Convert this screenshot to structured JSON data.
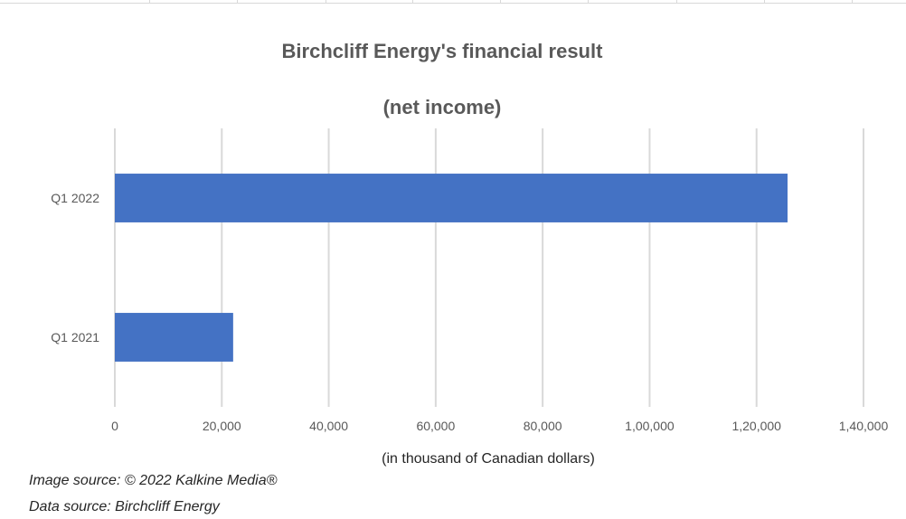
{
  "chart_data": {
    "type": "bar",
    "orientation": "horizontal",
    "title": "Birchcliff Energy's financial result",
    "subtitle": "(net income)",
    "categories": [
      "Q1 2021",
      "Q1 2022"
    ],
    "values": [
      22126,
      125795
    ],
    "xlabel": "(in thousand of Canadian dollars)",
    "ylabel": "",
    "xlim": [
      0,
      140000
    ],
    "x_ticks": [
      0,
      20000,
      40000,
      60000,
      80000,
      100000,
      120000,
      140000
    ],
    "x_tick_labels": [
      "0",
      "20,000",
      "40,000",
      "60,000",
      "80,000",
      "1,00,000",
      "1,20,000",
      "1,40,000"
    ],
    "grid": "vertical",
    "legend": "none",
    "bar_color": "#4472c4",
    "grid_color": "#d9d9d9"
  },
  "footer": {
    "image_source": "Image source: © 2022 Kalkine Media®",
    "data_source": "Data source: Birchcliff Energy"
  }
}
